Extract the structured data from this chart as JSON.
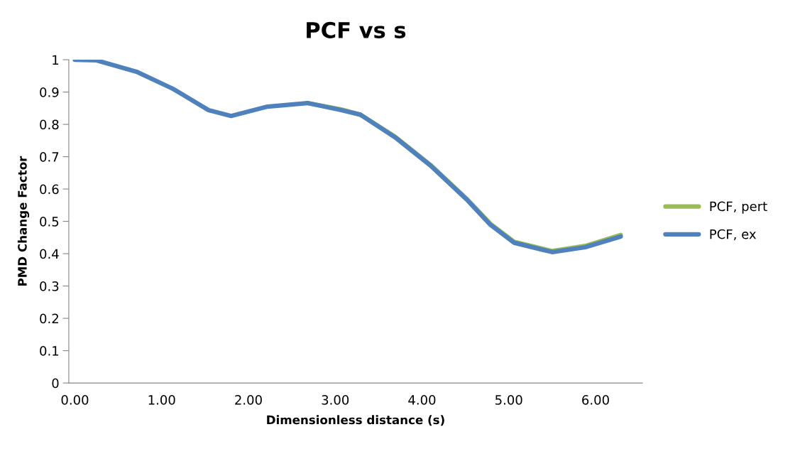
{
  "chart_data": {
    "type": "line",
    "title": "PCF vs s",
    "xlabel": "Dimensionless distance (s)",
    "ylabel": "PMD Change Factor",
    "x": [
      0,
      0.25,
      0.71,
      1.13,
      1.54,
      1.8,
      2.22,
      2.68,
      3.07,
      3.29,
      3.69,
      4.1,
      4.51,
      4.79,
      5.06,
      5.5,
      5.88,
      6.29
    ],
    "series": [
      {
        "name": "PCF, pert",
        "color": "#9bbb59",
        "values": [
          null,
          null,
          null,
          null,
          null,
          null,
          null,
          0.866,
          0.846,
          0.83,
          0.762,
          0.674,
          0.571,
          0.492,
          0.437,
          0.408,
          0.424,
          0.458
        ]
      },
      {
        "name": "PCF, ex",
        "color": "#4f81bd",
        "values": [
          1.0,
          0.998,
          0.963,
          0.91,
          0.844,
          0.826,
          0.855,
          0.866,
          0.844,
          0.83,
          0.76,
          0.672,
          0.569,
          0.489,
          0.434,
          0.405,
          0.42,
          0.453
        ]
      }
    ],
    "xlim": [
      -0.07,
      6.54
    ],
    "xticks": [
      {
        "value": 0,
        "label": "0.00"
      },
      {
        "value": 1,
        "label": "1.00"
      },
      {
        "value": 2,
        "label": "2.00"
      },
      {
        "value": 3,
        "label": "3.00"
      },
      {
        "value": 4,
        "label": "4.00"
      },
      {
        "value": 5,
        "label": "5.00"
      },
      {
        "value": 6,
        "label": "6.00"
      }
    ],
    "ylim": [
      0,
      1
    ],
    "yticks": [
      0,
      0.1,
      0.2,
      0.3,
      0.4,
      0.5,
      0.6,
      0.7,
      0.8,
      0.9,
      1
    ],
    "grid": false,
    "legend": "right",
    "marker": "none",
    "line_style": "solid"
  }
}
